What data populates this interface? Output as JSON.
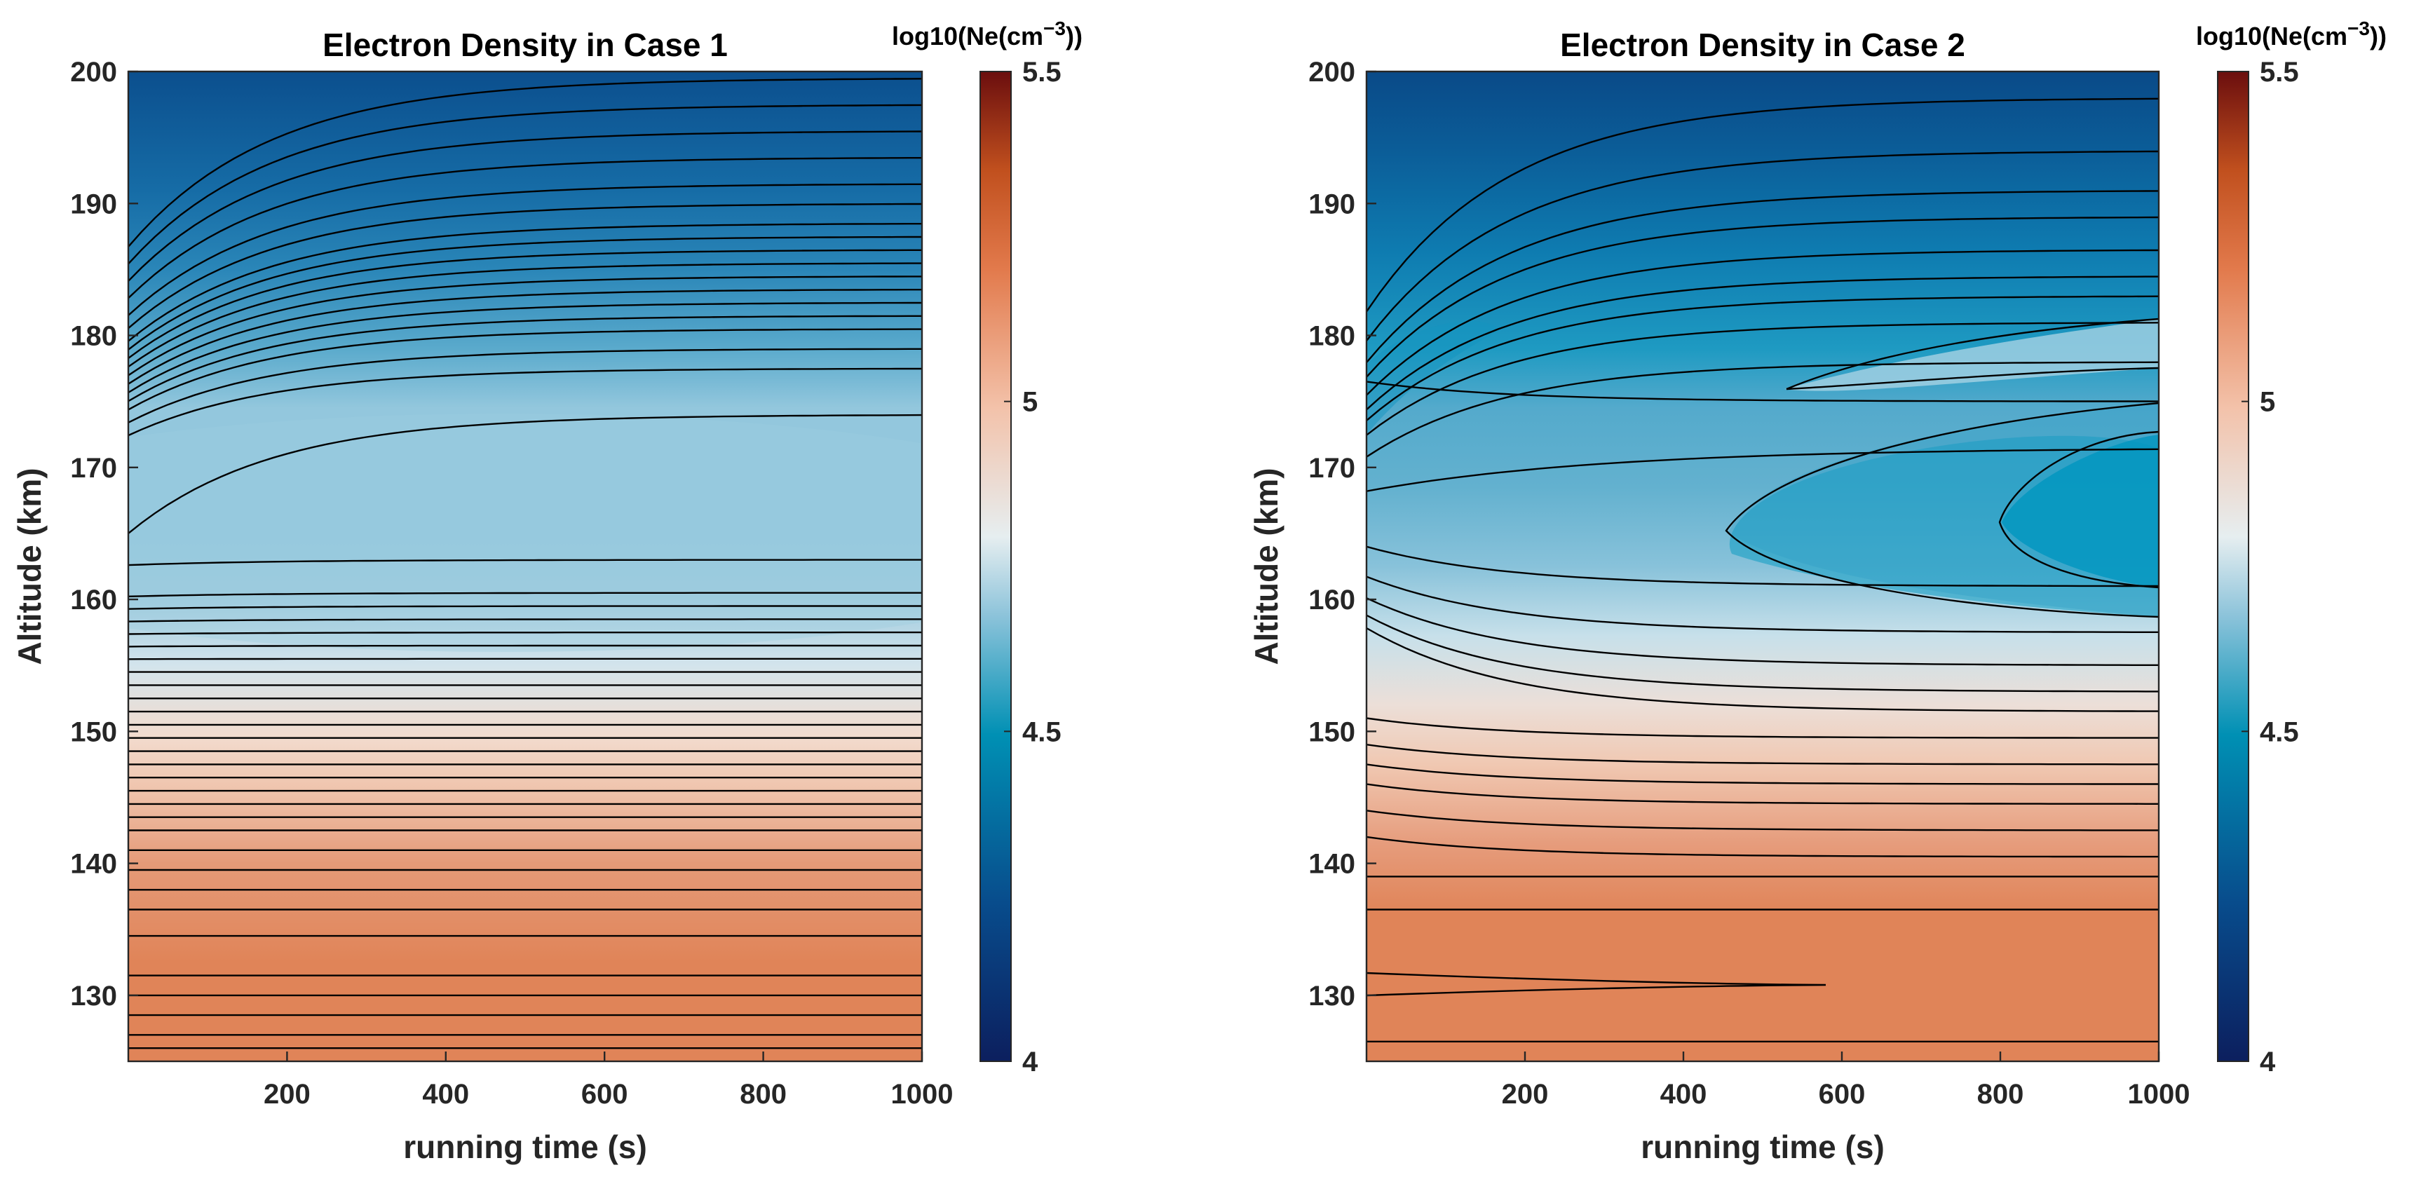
{
  "chart_data": [
    {
      "type": "contourf",
      "title": "Electron Density in Case 1",
      "xlabel": "running time (s)",
      "ylabel": "Altitude (km)",
      "xlim": [
        0,
        1000
      ],
      "ylim": [
        125,
        200
      ],
      "xticks": [
        200,
        400,
        600,
        800,
        1000
      ],
      "xtick_labels": [
        "200",
        "400",
        "600",
        "800",
        "1000"
      ],
      "yticks": [
        130,
        140,
        150,
        160,
        170,
        180,
        190,
        200
      ],
      "ytick_labels": [
        "130",
        "140",
        "150",
        "160",
        "170",
        "180",
        "190",
        "200"
      ],
      "colorbar": {
        "label": "log10(Ne(cm^-3))",
        "range": [
          4,
          5.5
        ],
        "ticks": [
          4,
          4.5,
          5,
          5.5
        ],
        "tick_labels": [
          "4",
          "4.5",
          "5",
          "5.5"
        ]
      },
      "density_profile_log10": [
        [
          125,
          5.15
        ],
        [
          130,
          5.15
        ],
        [
          135,
          5.13
        ],
        [
          140,
          5.05
        ],
        [
          145,
          4.92
        ],
        [
          150,
          4.8
        ],
        [
          155,
          4.7
        ],
        [
          160,
          4.61
        ],
        [
          165,
          4.57
        ],
        [
          170,
          4.56
        ],
        [
          175,
          4.56
        ],
        [
          180,
          4.48
        ],
        [
          185,
          4.4
        ],
        [
          190,
          4.3
        ],
        [
          195,
          4.22
        ],
        [
          200,
          4.12
        ]
      ],
      "contour_levels_altitude_at_t1000": [
        126,
        127,
        128.5,
        130,
        131.5,
        134.5,
        136.5,
        138,
        139.5,
        141,
        142.5,
        143.5,
        144.5,
        145.5,
        146.5,
        147.5,
        148.5,
        149.5,
        150.5,
        151.5,
        152.5,
        153.5,
        154.5,
        155.5,
        156.5,
        157.5,
        158.5,
        159.5,
        160.5,
        163,
        174,
        177.5,
        179,
        180.5,
        181.5,
        182.5,
        183.5,
        184.5,
        185.5,
        186.5,
        187.5,
        188.5,
        190,
        191.5,
        193.5,
        195.5,
        197.5,
        199.5
      ]
    },
    {
      "type": "contourf",
      "title": "Electron Density in Case 2",
      "xlabel": "running time (s)",
      "ylabel": "Altitude (km)",
      "xlim": [
        0,
        1000
      ],
      "ylim": [
        125,
        200
      ],
      "xticks": [
        200,
        400,
        600,
        800,
        1000
      ],
      "xtick_labels": [
        "200",
        "400",
        "600",
        "800",
        "1000"
      ],
      "yticks": [
        130,
        140,
        150,
        160,
        170,
        180,
        190,
        200
      ],
      "ytick_labels": [
        "130",
        "140",
        "150",
        "160",
        "170",
        "180",
        "190",
        "200"
      ],
      "colorbar": {
        "label": "log10(Ne(cm^-3))",
        "range": [
          4,
          5.5
        ],
        "ticks": [
          4,
          4.5,
          5,
          5.5
        ],
        "tick_labels": [
          "4",
          "4.5",
          "5",
          "5.5"
        ]
      },
      "density_profile_log10": [
        [
          125,
          5.13
        ],
        [
          130,
          5.15
        ],
        [
          137,
          5.1
        ],
        [
          140,
          5.02
        ],
        [
          145,
          4.9
        ],
        [
          150,
          4.78
        ],
        [
          155,
          4.68
        ],
        [
          160,
          4.58
        ],
        [
          165,
          4.48
        ],
        [
          170,
          4.52
        ],
        [
          175,
          4.53
        ],
        [
          180,
          4.45
        ],
        [
          185,
          4.35
        ],
        [
          190,
          4.25
        ],
        [
          195,
          4.18
        ],
        [
          200,
          4.1
        ]
      ],
      "contour_levels_altitude_at_t1000": [
        126.5,
        136.5,
        139,
        140.5,
        142.5,
        144.5,
        146,
        147.5,
        149.5,
        151.5,
        153,
        155,
        157.5,
        161,
        171.5,
        175,
        178,
        181,
        183,
        184.5,
        186.5,
        189,
        191,
        194,
        198
      ]
    }
  ]
}
